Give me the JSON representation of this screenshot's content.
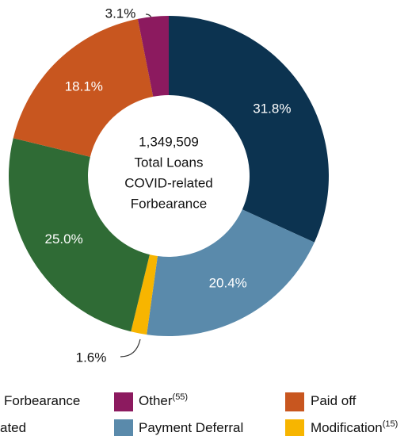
{
  "chart_data": {
    "type": "pie",
    "categories": [
      "Forbearance",
      "Payment Deferral",
      "Modification",
      "ated",
      "Paid off",
      "Other"
    ],
    "category_notes": [
      null,
      null,
      "(15)",
      null,
      null,
      "(55)"
    ],
    "values": [
      31.8,
      20.4,
      1.6,
      25.0,
      18.1,
      3.1
    ],
    "value_labels": [
      "31.8%",
      "20.4%",
      "1.6%",
      "25.0%",
      "18.1%",
      "3.1%"
    ],
    "colors": [
      "#0c3350",
      "#5a8aab",
      "#f7b500",
      "#2f6b35",
      "#c8561f",
      "#8c1a5f"
    ],
    "center_text": [
      "1,349,509",
      "Total Loans",
      "COVID-related",
      "Forbearance"
    ]
  }
}
